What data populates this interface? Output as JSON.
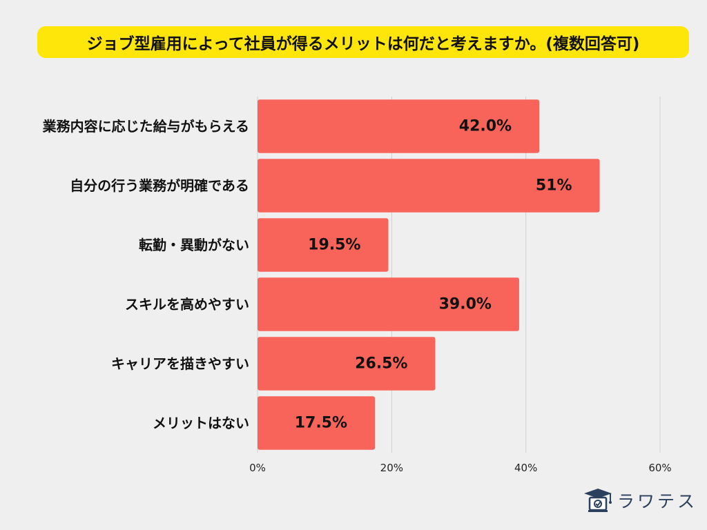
{
  "chart_data": {
    "type": "bar",
    "orientation": "horizontal",
    "title": "ジョブ型雇用によって社員が得るメリットは何だと考えますか。(複数回答可)",
    "categories": [
      "業務内容に応じた給与がもらえる",
      "自分の行う業務が明確である",
      "転勤・異動がない",
      "スキルを高めやすい",
      "キャリアを描きやすい",
      "メリットはない"
    ],
    "values": [
      42.0,
      51,
      19.5,
      39.0,
      26.5,
      17.5
    ],
    "value_labels": [
      "42.0%",
      "51%",
      "19.5%",
      "39.0%",
      "26.5%",
      "17.5%"
    ],
    "xlim": [
      0,
      60
    ],
    "ticks": [
      0,
      20,
      40,
      60
    ],
    "tick_labels": [
      "0%",
      "20%",
      "40%",
      "60%"
    ],
    "xlabel": "",
    "ylabel": "",
    "grid": true,
    "bar_color": "#f8645a",
    "title_bg": "#ffe60a"
  },
  "brand": {
    "name": "ラワテス",
    "logo_icon": "graduation-cap-checkbox-icon",
    "color": "#2c3f5c"
  }
}
